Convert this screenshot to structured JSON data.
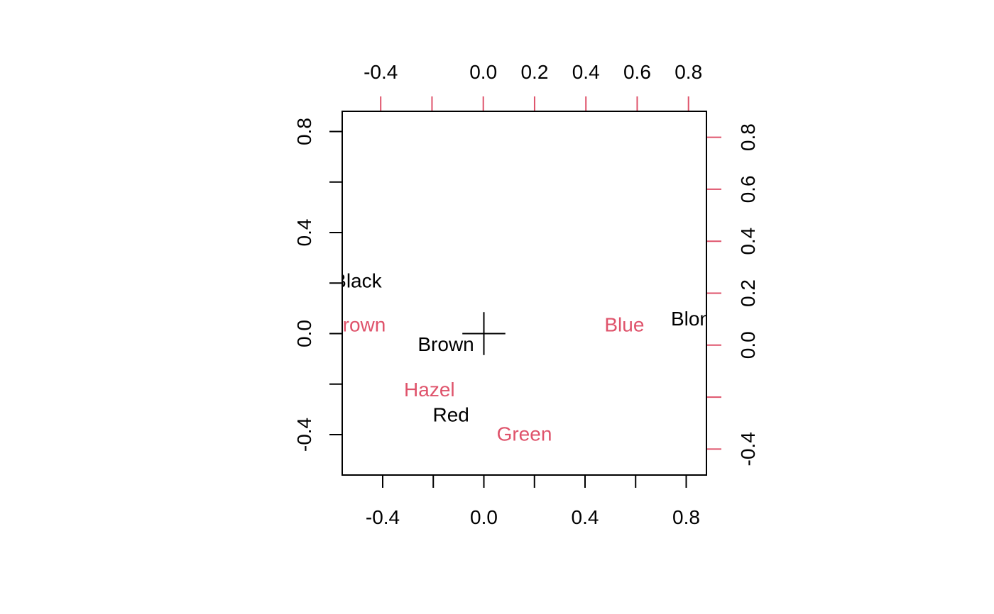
{
  "chart_data": {
    "type": "scatter",
    "title": "",
    "xlabel": "",
    "ylabel": "",
    "colors": {
      "primary": "#000000",
      "secondary": "#DF536B"
    },
    "bottom_axis": {
      "range": [
        -0.56,
        0.88
      ],
      "ticks": [
        -0.4,
        -0.2,
        0.0,
        0.2,
        0.4,
        0.6,
        0.8
      ],
      "tick_labels": [
        "-0.4",
        "",
        "0.0",
        "",
        "0.4",
        "",
        "0.8"
      ]
    },
    "left_axis": {
      "range": [
        -0.56,
        0.88
      ],
      "ticks": [
        -0.4,
        -0.2,
        0.0,
        0.2,
        0.4,
        0.6,
        0.8
      ],
      "tick_labels": [
        "-0.4",
        "",
        "0.0",
        "",
        "0.4",
        "",
        "0.8"
      ]
    },
    "top_axis": {
      "range": [
        -0.55,
        0.87
      ],
      "ticks": [
        -0.4,
        -0.2,
        0.0,
        0.2,
        0.4,
        0.6,
        0.8
      ],
      "tick_labels": [
        "-0.4",
        "",
        "0.0",
        "0.2",
        "0.4",
        "0.6",
        "0.8"
      ]
    },
    "right_axis": {
      "range": [
        -0.5,
        0.9
      ],
      "ticks": [
        -0.4,
        -0.2,
        0.0,
        0.2,
        0.4,
        0.6,
        0.8
      ],
      "tick_labels": [
        "-0.4",
        "",
        "0.0",
        "0.2",
        "0.4",
        "0.6",
        "0.8"
      ]
    },
    "series": [
      {
        "color": "primary",
        "axes": [
          "bottom",
          "left"
        ],
        "points": [
          {
            "label": "Black",
            "x": -0.5,
            "y": 0.21
          },
          {
            "label": "Brown",
            "x": -0.15,
            "y": -0.04
          },
          {
            "label": "Red",
            "x": -0.13,
            "y": -0.32
          },
          {
            "label": "Blond",
            "x": 0.84,
            "y": 0.06
          }
        ]
      },
      {
        "color": "secondary",
        "axes": [
          "top",
          "right"
        ],
        "points": [
          {
            "label": "Brown",
            "x": -0.49,
            "y": 0.08
          },
          {
            "label": "Hazel",
            "x": -0.21,
            "y": -0.17
          },
          {
            "label": "Green",
            "x": 0.16,
            "y": -0.34
          },
          {
            "label": "Blue",
            "x": 0.55,
            "y": 0.08
          }
        ]
      }
    ],
    "origin_cross": {
      "x": 0.0,
      "y": 0.0,
      "half_length": 0.085
    }
  }
}
